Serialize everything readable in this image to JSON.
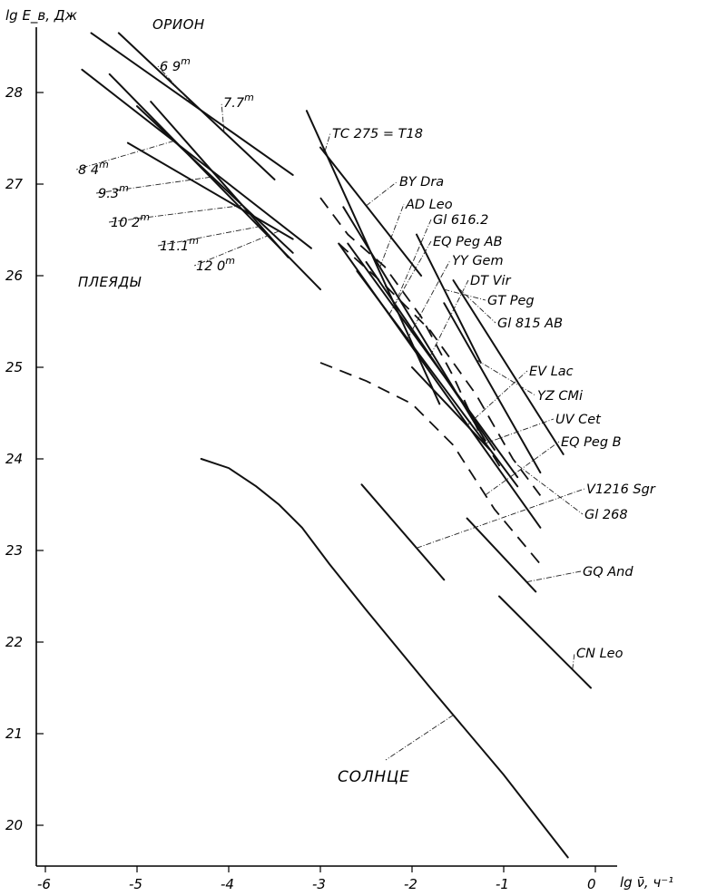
{
  "chart_data": {
    "type": "line",
    "xlabel": "lg ν̄, ч⁻¹",
    "ylabel": "lg E_в, Дж",
    "xlim": [
      -6,
      0
    ],
    "ylim": [
      20,
      28
    ],
    "x_ticks": [
      "-6",
      "-5",
      "-4",
      "-3",
      "-2",
      "-1",
      "0"
    ],
    "y_ticks": [
      "20",
      "21",
      "22",
      "23",
      "24",
      "25",
      "26",
      "27",
      "28"
    ],
    "group_labels": {
      "orion": "ОРИОН",
      "pleiades": "ПЛЕЯДЫ",
      "sun": "СОЛНЦЕ"
    },
    "series": [
      {
        "name": "6.9m",
        "label": "6 9",
        "sup": "m",
        "x": [
          -5.5,
          -3.3
        ],
        "y": [
          28.65,
          27.1
        ]
      },
      {
        "name": "7.7m",
        "label": "7.7",
        "sup": "m",
        "x": [
          -5.2,
          -3.5
        ],
        "y": [
          28.65,
          27.05
        ]
      },
      {
        "name": "8.4m",
        "label": "8 4",
        "sup": "m",
        "x": [
          -5.6,
          -3.1
        ],
        "y": [
          28.25,
          26.3
        ]
      },
      {
        "name": "9.3m",
        "label": "9.3",
        "sup": "m",
        "x": [
          -5.3,
          -3.0
        ],
        "y": [
          28.2,
          25.85
        ]
      },
      {
        "name": "10.2m",
        "label": "10 2",
        "sup": "m",
        "x": [
          -5.0,
          -3.3
        ],
        "y": [
          27.85,
          26.25
        ]
      },
      {
        "name": "11.1m",
        "label": "11.1",
        "sup": "m",
        "x": [
          -4.85,
          -3.35
        ],
        "y": [
          27.9,
          26.2
        ]
      },
      {
        "name": "12.0m",
        "label": "12 0",
        "sup": "m",
        "x": [
          -5.1,
          -3.3
        ],
        "y": [
          27.45,
          26.4
        ]
      },
      {
        "name": "TC 275 = T18",
        "label": "TC 275 = T18",
        "x": [
          -3.15,
          -1.7
        ],
        "y": [
          27.8,
          24.6
        ]
      },
      {
        "name": "BY Dra",
        "label": "BY Dra",
        "x": [
          -3.0,
          -1.9
        ],
        "y": [
          27.4,
          26.0
        ]
      },
      {
        "name": "AD Leo",
        "label": "AD Leo",
        "x": [
          -2.75,
          -1.2
        ],
        "y": [
          26.75,
          24.2
        ]
      },
      {
        "name": "Gl 616.2",
        "label": "Gl 616.2",
        "x": [
          -2.7,
          -0.85
        ],
        "y": [
          26.35,
          23.8
        ]
      },
      {
        "name": "EQ Peg AB",
        "label": "EQ Peg AB",
        "x": [
          -2.8,
          -0.6
        ],
        "y": [
          26.35,
          23.25
        ]
      },
      {
        "name": "YY Gem",
        "label": "YY Gem",
        "x": [
          -2.6,
          -0.85
        ],
        "y": [
          26.05,
          23.7
        ]
      },
      {
        "name": "DT Vir",
        "label": "DT Vir",
        "x": [
          -2.5,
          -1.1
        ],
        "y": [
          26.15,
          24.1
        ]
      },
      {
        "name": "GT Peg",
        "label": "GT Peg",
        "x": [
          -1.95,
          -1.25
        ],
        "y": [
          26.45,
          25.05
        ]
      },
      {
        "name": "Gl 815 AB",
        "label": "Gl 815 AB",
        "x": [
          -1.55,
          -0.35
        ],
        "y": [
          25.95,
          24.05
        ]
      },
      {
        "name": "EV Lac",
        "label": "EV Lac",
        "x": [
          -2.0,
          -1.15
        ],
        "y": [
          25.0,
          24.1
        ]
      },
      {
        "name": "YZ CMi",
        "label": "YZ CMi",
        "x": [
          -1.65,
          -0.6
        ],
        "y": [
          25.7,
          23.85
        ]
      },
      {
        "name": "V1216 Sgr",
        "label": "V1216 Sgr",
        "x": [
          -2.55,
          -1.65
        ],
        "y": [
          23.72,
          22.68
        ]
      },
      {
        "name": "GQ And",
        "label": "GQ And",
        "x": [
          -1.4,
          -0.65
        ],
        "y": [
          23.35,
          22.55
        ]
      },
      {
        "name": "CN Leo",
        "label": "CN Leo",
        "x": [
          -1.05,
          -0.05
        ],
        "y": [
          22.5,
          21.5
        ]
      },
      {
        "name": "СОЛНЦЕ",
        "label": "СОЛНЦЕ",
        "x": [
          -4.3,
          -4.0,
          -3.7,
          -3.45,
          -3.2,
          -2.9,
          -2.5,
          -1.8,
          -1.0,
          -0.3
        ],
        "y": [
          24.0,
          23.9,
          23.7,
          23.5,
          23.25,
          22.85,
          22.35,
          21.5,
          20.55,
          19.65
        ]
      }
    ],
    "dashed_curves": [
      {
        "name": "UV Cet",
        "label": "UV Cet",
        "x": [
          -3.0,
          -2.7,
          -2.3,
          -1.9,
          -1.55,
          -1.25,
          -1.0
        ],
        "y": [
          26.85,
          26.45,
          26.1,
          25.55,
          24.9,
          24.25,
          23.85
        ]
      },
      {
        "name": "EQ Peg B",
        "label": "EQ Peg B",
        "x": [
          -3.0,
          -2.5,
          -2.0,
          -1.55,
          -1.1,
          -0.6
        ],
        "y": [
          25.05,
          24.85,
          24.6,
          24.15,
          23.45,
          22.85
        ]
      },
      {
        "name": "Gl 268",
        "label": "Gl 268",
        "x": [
          -2.8,
          -2.3,
          -1.8,
          -1.3,
          -0.9,
          -0.6
        ],
        "y": [
          26.35,
          25.9,
          25.4,
          24.7,
          24.0,
          23.6
        ]
      }
    ]
  }
}
